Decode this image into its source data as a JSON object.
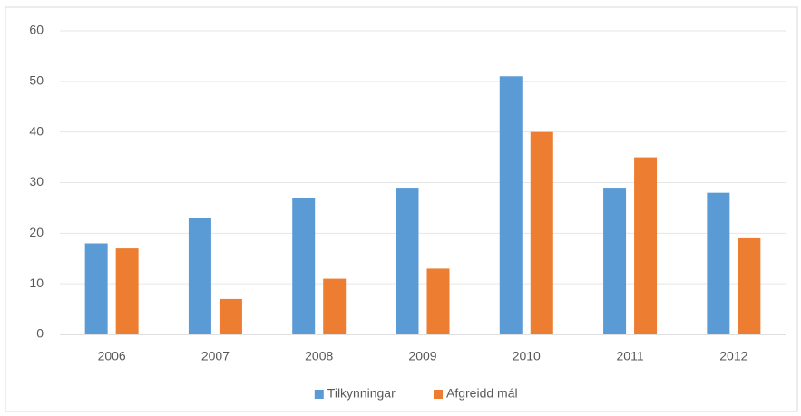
{
  "chart_data": {
    "type": "bar",
    "categories": [
      "2006",
      "2007",
      "2008",
      "2009",
      "2010",
      "2011",
      "2012"
    ],
    "series": [
      {
        "name": "Tilkynningar",
        "color": "#5b9bd5",
        "values": [
          18,
          23,
          27,
          29,
          51,
          29,
          28
        ]
      },
      {
        "name": "Afgreidd mál",
        "color": "#ed7d31",
        "values": [
          17,
          7,
          11,
          13,
          40,
          35,
          19
        ]
      }
    ],
    "ylim": [
      0,
      60
    ],
    "yticks": [
      0,
      10,
      20,
      30,
      40,
      50,
      60
    ],
    "grid": true,
    "legend": "bottom"
  }
}
